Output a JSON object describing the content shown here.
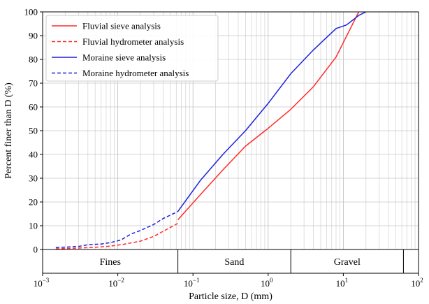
{
  "chart_data": {
    "type": "line",
    "xscale": "log",
    "xlim": [
      0.001,
      100
    ],
    "ylim": [
      0,
      100
    ],
    "xlabel": "Particle size, D (mm)",
    "ylabel": "Percent finer than D (%)",
    "x_tick_labels": [
      "10",
      "10",
      "10",
      "10",
      "10",
      "10"
    ],
    "x_tick_exponents": [
      "−3",
      "−2",
      "−1",
      "0",
      "1",
      "2"
    ],
    "x_tick_values": [
      0.001,
      0.01,
      0.1,
      1,
      10,
      100
    ],
    "y_ticks": [
      0,
      10,
      20,
      30,
      40,
      50,
      60,
      70,
      80,
      90,
      100
    ],
    "grid": true,
    "legend_position": "top-left",
    "series": [
      {
        "name": "Fluvial sieve analysis",
        "color": "#ff2a2a",
        "style": "solid",
        "x": [
          0.063,
          0.125,
          0.25,
          0.5,
          1,
          2,
          4,
          8,
          16
        ],
        "y": [
          12.5,
          23,
          33.5,
          43.5,
          51,
          59,
          68.5,
          81,
          100
        ]
      },
      {
        "name": "Fluvial hydrometer analysis",
        "color": "#ff2a2a",
        "style": "dashed",
        "x": [
          0.0015,
          0.002,
          0.003,
          0.005,
          0.008,
          0.012,
          0.02,
          0.03,
          0.045,
          0.063
        ],
        "y": [
          0.3,
          0.4,
          0.6,
          0.9,
          1.4,
          2.2,
          3.5,
          5.5,
          8.5,
          11
        ]
      },
      {
        "name": "Moraine sieve analysis",
        "color": "#1f1fe0",
        "style": "solid",
        "x": [
          0.063,
          0.125,
          0.25,
          0.5,
          1,
          2,
          4,
          8,
          11,
          16,
          20
        ],
        "y": [
          16,
          29,
          40,
          50,
          61.5,
          74,
          84,
          93,
          94.5,
          98.5,
          100
        ]
      },
      {
        "name": "Moraine hydrometer analysis",
        "color": "#1f1fe0",
        "style": "dashed",
        "x": [
          0.0015,
          0.002,
          0.003,
          0.004,
          0.006,
          0.008,
          0.011,
          0.015,
          0.02,
          0.03,
          0.04,
          0.063
        ],
        "y": [
          0.8,
          1.0,
          1.3,
          2.0,
          2.3,
          2.9,
          4.0,
          6.5,
          8.0,
          10.5,
          13.0,
          16.0
        ]
      }
    ],
    "bands": [
      {
        "label": "Fines",
        "from": 0.0015,
        "to": 0.063
      },
      {
        "label": "Sand",
        "from": 0.063,
        "to": 2
      },
      {
        "label": "Gravel",
        "from": 2,
        "to": 63
      }
    ]
  }
}
